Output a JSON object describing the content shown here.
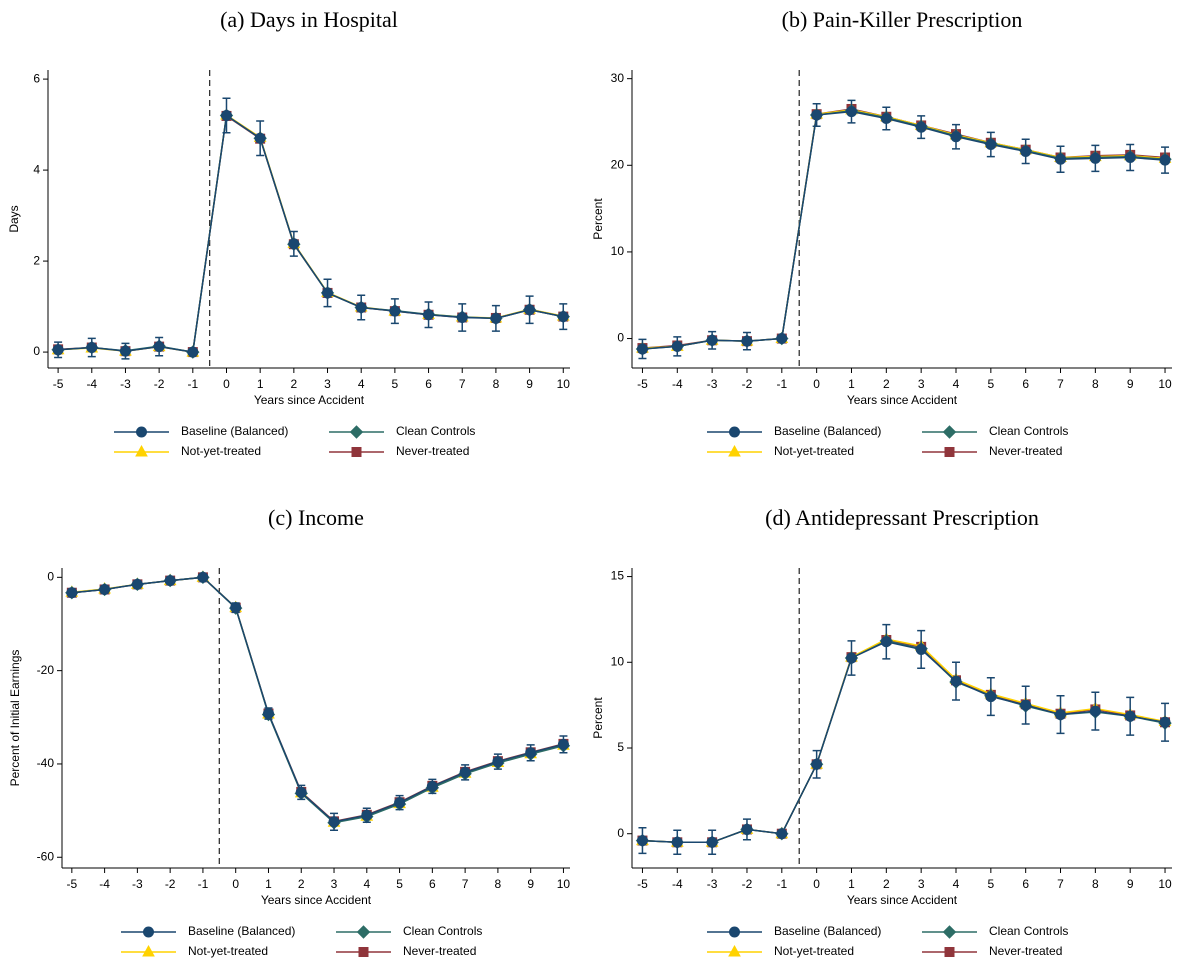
{
  "chart_data": [
    {
      "type": "line",
      "title": "(a) Days in Hospital",
      "xlabel": "Years since Accident",
      "ylabel": "Days",
      "x": [
        -5,
        -4,
        -3,
        -2,
        -1,
        0,
        1,
        2,
        3,
        4,
        5,
        6,
        7,
        8,
        9,
        10
      ],
      "xlim": [
        -5.3,
        10.2
      ],
      "xticks": [
        -5,
        -4,
        -3,
        -2,
        -1,
        0,
        1,
        2,
        3,
        4,
        5,
        6,
        7,
        8,
        9,
        10
      ],
      "ylim": [
        -0.35,
        6.2
      ],
      "yticks": [
        0,
        2,
        4,
        6
      ],
      "vline": -0.5,
      "series": [
        {
          "name": "Baseline (Balanced)",
          "color": "#1a476f",
          "marker": "circle",
          "values": [
            0.05,
            0.1,
            0.02,
            0.12,
            0,
            5.2,
            4.7,
            2.38,
            1.3,
            0.98,
            0.9,
            0.82,
            0.76,
            0.74,
            0.93,
            0.78
          ],
          "errors": [
            0.17,
            0.2,
            0.17,
            0.2,
            0.05,
            0.38,
            0.38,
            0.27,
            0.3,
            0.27,
            0.27,
            0.28,
            0.3,
            0.28,
            0.3,
            0.28
          ]
        },
        {
          "name": "Clean Controls",
          "color": "#2d6d66",
          "marker": "diamond",
          "values": [
            0.05,
            0.1,
            0.03,
            0.13,
            0,
            5.2,
            4.7,
            2.37,
            1.3,
            0.98,
            0.91,
            0.83,
            0.77,
            0.74,
            0.93,
            0.78
          ]
        },
        {
          "name": "Not-yet-treated",
          "color": "#ffd200",
          "marker": "triangle",
          "values": [
            0.05,
            0.09,
            0.02,
            0.12,
            0,
            5.21,
            4.72,
            2.39,
            1.31,
            0.99,
            0.9,
            0.83,
            0.77,
            0.75,
            0.94,
            0.79
          ]
        },
        {
          "name": "Never-treated",
          "color": "#90353b",
          "marker": "square",
          "values": [
            0.06,
            0.1,
            0.02,
            0.12,
            0,
            5.19,
            4.69,
            2.37,
            1.3,
            0.98,
            0.9,
            0.82,
            0.76,
            0.75,
            0.93,
            0.78
          ]
        }
      ]
    },
    {
      "type": "line",
      "title": "(b) Pain-Killer Prescription",
      "xlabel": "Years since Accident",
      "ylabel": "Percent",
      "x": [
        -5,
        -4,
        -3,
        -2,
        -1,
        0,
        1,
        2,
        3,
        4,
        5,
        6,
        7,
        8,
        9,
        10
      ],
      "xlim": [
        -5.3,
        10.2
      ],
      "xticks": [
        -5,
        -4,
        -3,
        -2,
        -1,
        0,
        1,
        2,
        3,
        4,
        5,
        6,
        7,
        8,
        9,
        10
      ],
      "ylim": [
        -3.4,
        31
      ],
      "yticks": [
        0,
        10,
        20,
        30
      ],
      "vline": -0.5,
      "series": [
        {
          "name": "Baseline (Balanced)",
          "color": "#1a476f",
          "marker": "circle",
          "values": [
            -1.2,
            -0.9,
            -0.2,
            -0.3,
            0,
            25.8,
            26.2,
            25.4,
            24.4,
            23.3,
            22.4,
            21.6,
            20.7,
            20.8,
            20.9,
            20.6
          ],
          "errors": [
            1.1,
            1.1,
            1.0,
            1.0,
            0.2,
            1.3,
            1.3,
            1.3,
            1.3,
            1.4,
            1.4,
            1.4,
            1.5,
            1.5,
            1.5,
            1.5
          ]
        },
        {
          "name": "Clean Controls",
          "color": "#2d6d66",
          "marker": "diamond",
          "values": [
            -1.2,
            -0.9,
            -0.2,
            -0.3,
            0,
            25.8,
            26.3,
            25.5,
            24.5,
            23.4,
            22.5,
            21.7,
            20.8,
            20.9,
            21.0,
            20.7
          ]
        },
        {
          "name": "Not-yet-treated",
          "color": "#ffd200",
          "marker": "triangle",
          "values": [
            -1.1,
            -0.9,
            -0.2,
            -0.3,
            0,
            25.9,
            26.4,
            25.6,
            24.6,
            23.5,
            22.6,
            21.8,
            20.9,
            21.0,
            21.1,
            20.8
          ]
        },
        {
          "name": "Never-treated",
          "color": "#90353b",
          "marker": "square",
          "values": [
            -1.1,
            -0.8,
            -0.2,
            -0.3,
            0,
            25.9,
            26.5,
            25.6,
            24.6,
            23.6,
            22.6,
            21.8,
            20.9,
            21.1,
            21.2,
            20.9
          ]
        }
      ]
    },
    {
      "type": "line",
      "title": "(c) Income",
      "xlabel": "Years since Accident",
      "ylabel": "Percent of Initial Earnings",
      "x": [
        -5,
        -4,
        -3,
        -2,
        -1,
        0,
        1,
        2,
        3,
        4,
        5,
        6,
        7,
        8,
        9,
        10
      ],
      "xlim": [
        -5.3,
        10.2
      ],
      "xticks": [
        -5,
        -4,
        -3,
        -2,
        -1,
        0,
        1,
        2,
        3,
        4,
        5,
        6,
        7,
        8,
        9,
        10
      ],
      "ylim": [
        -62.3,
        2
      ],
      "yticks": [
        -60,
        -40,
        -20,
        0
      ],
      "vline": -0.5,
      "series": [
        {
          "name": "Baseline (Balanced)",
          "color": "#1a476f",
          "marker": "circle",
          "values": [
            -3.3,
            -2.6,
            -1.5,
            -0.7,
            0,
            -6.5,
            -29.2,
            -46.1,
            -52.4,
            -51,
            -48.3,
            -44.8,
            -41.8,
            -39.5,
            -37.6,
            -35.8
          ],
          "errors": [
            0.8,
            0.7,
            0.7,
            0.7,
            0.1,
            1,
            1.2,
            1.5,
            1.8,
            1.5,
            1.5,
            1.5,
            1.6,
            1.6,
            1.7,
            1.8
          ]
        },
        {
          "name": "Clean Controls",
          "color": "#2d6d66",
          "marker": "diamond",
          "values": [
            -3.3,
            -2.6,
            -1.5,
            -0.7,
            0,
            -6.6,
            -29.4,
            -46.3,
            -52.6,
            -51.3,
            -48.6,
            -45.1,
            -42.1,
            -39.8,
            -37.9,
            -36.1
          ]
        },
        {
          "name": "Not-yet-treated",
          "color": "#ffd200",
          "marker": "triangle",
          "values": [
            -3.2,
            -2.5,
            -1.5,
            -0.7,
            0,
            -6.5,
            -29.3,
            -46.2,
            -52.5,
            -51.2,
            -48.5,
            -45.0,
            -42.0,
            -39.7,
            -37.8,
            -36.0
          ]
        },
        {
          "name": "Never-treated",
          "color": "#90353b",
          "marker": "square",
          "values": [
            -3.3,
            -2.6,
            -1.5,
            -0.7,
            0,
            -6.5,
            -29.2,
            -46.0,
            -52.3,
            -50.9,
            -48.2,
            -44.7,
            -41.7,
            -39.4,
            -37.5,
            -35.7
          ]
        }
      ]
    },
    {
      "type": "line",
      "title": "(d) Antidepressant Prescription",
      "xlabel": "Years since Accident",
      "ylabel": "Percent",
      "x": [
        -5,
        -4,
        -3,
        -2,
        -1,
        0,
        1,
        2,
        3,
        4,
        5,
        6,
        7,
        8,
        9,
        10
      ],
      "xlim": [
        -5.3,
        10.2
      ],
      "xticks": [
        -5,
        -4,
        -3,
        -2,
        -1,
        0,
        1,
        2,
        3,
        4,
        5,
        6,
        7,
        8,
        9,
        10
      ],
      "ylim": [
        -2,
        15.5
      ],
      "yticks": [
        0,
        5,
        10,
        15
      ],
      "vline": -0.5,
      "series": [
        {
          "name": "Baseline (Balanced)",
          "color": "#1a476f",
          "marker": "circle",
          "values": [
            -0.4,
            -0.5,
            -0.5,
            0.25,
            0,
            4.05,
            10.25,
            11.2,
            10.75,
            8.9,
            8.0,
            7.5,
            6.95,
            7.15,
            6.85,
            6.5
          ],
          "errors": [
            0.75,
            0.7,
            0.7,
            0.6,
            0.1,
            0.8,
            1.0,
            1.0,
            1.1,
            1.1,
            1.1,
            1.1,
            1.1,
            1.1,
            1.1,
            1.1
          ]
        },
        {
          "name": "Clean Controls",
          "color": "#2d6d66",
          "marker": "diamond",
          "values": [
            -0.4,
            -0.5,
            -0.5,
            0.25,
            0,
            4.05,
            10.25,
            11.25,
            10.8,
            8.85,
            8.05,
            7.45,
            6.95,
            7.1,
            6.85,
            6.45
          ]
        },
        {
          "name": "Not-yet-treated",
          "color": "#ffd200",
          "marker": "triangle",
          "values": [
            -0.4,
            -0.5,
            -0.5,
            0.25,
            0,
            4.05,
            10.3,
            11.35,
            10.95,
            9.0,
            8.15,
            7.6,
            7.05,
            7.3,
            6.95,
            6.55
          ]
        },
        {
          "name": "Never-treated",
          "color": "#90353b",
          "marker": "square",
          "values": [
            -0.4,
            -0.5,
            -0.5,
            0.25,
            0,
            4.05,
            10.3,
            11.3,
            10.9,
            8.95,
            8.1,
            7.55,
            7.0,
            7.25,
            6.9,
            6.5
          ]
        }
      ]
    }
  ]
}
